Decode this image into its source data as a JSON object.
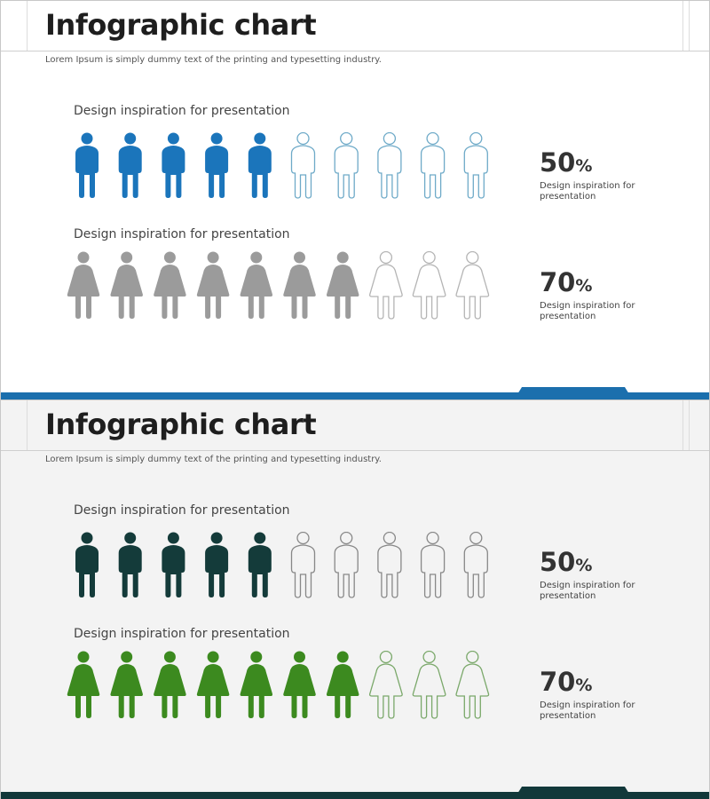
{
  "slides": [
    {
      "title": "Infographic chart",
      "subtitle": "Lorem Ipsum is simply dummy text of the printing and typesetting industry.",
      "accent_color": "#1b6fad",
      "rows": [
        {
          "label": "Design inspiration for presentation",
          "icon": "male-person-icon",
          "value": 50,
          "value_text": "50",
          "suffix": "%",
          "caption": "Design inspiration for presentation",
          "total": 10,
          "filled": 5,
          "filled_color": "#1b75bb",
          "outline_color": "#6eaac8"
        },
        {
          "label": "Design inspiration for presentation",
          "icon": "female-person-icon",
          "value": 70,
          "value_text": "70",
          "suffix": "%",
          "caption": "Design inspiration for presentation",
          "total": 10,
          "filled": 7,
          "filled_color": "#9b9b9b",
          "outline_color": "#b4b4b4"
        }
      ]
    },
    {
      "title": "Infographic chart",
      "subtitle": "Lorem Ipsum is simply dummy text of the printing and typesetting industry.",
      "accent_color": "#12383a",
      "rows": [
        {
          "label": "Design inspiration for presentation",
          "icon": "male-person-icon",
          "value": 50,
          "value_text": "50",
          "suffix": "%",
          "caption": "Design inspiration for presentation",
          "total": 10,
          "filled": 5,
          "filled_color": "#143b3a",
          "outline_color": "#888888"
        },
        {
          "label": "Design inspiration for presentation",
          "icon": "female-person-icon",
          "value": 70,
          "value_text": "70",
          "suffix": "%",
          "caption": "Design inspiration for presentation",
          "total": 10,
          "filled": 7,
          "filled_color": "#3c8a1f",
          "outline_color": "#7aa86a"
        }
      ]
    }
  ],
  "chart_data": [
    {
      "type": "bar",
      "categories": [
        "Design inspiration for presentation",
        "Design inspiration for presentation"
      ],
      "values": [
        50,
        70
      ],
      "ylim": [
        0,
        100
      ],
      "title": "Infographic chart"
    },
    {
      "type": "bar",
      "categories": [
        "Design inspiration for presentation",
        "Design inspiration for presentation"
      ],
      "values": [
        50,
        70
      ],
      "ylim": [
        0,
        100
      ],
      "title": "Infographic chart"
    }
  ]
}
